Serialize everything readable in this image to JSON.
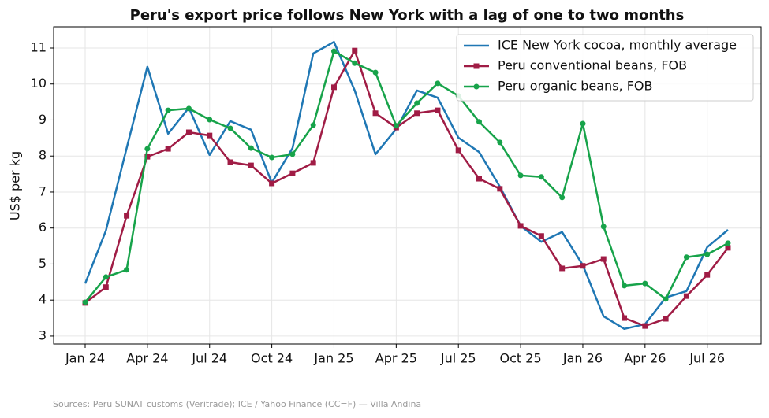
{
  "chart_data": {
    "type": "line",
    "title": "Peru's export price follows New York with a lag of one to two months",
    "y_label": "US$ per kg",
    "source": "Sources: Peru SUNAT customs (Veritrade); ICE / Yahoo Finance (CC=F) — Villa Andina",
    "categories": [
      "Jan 24",
      null,
      null,
      "Apr 24",
      null,
      null,
      "Jul 24",
      null,
      null,
      "Oct 24",
      null,
      null,
      "Jan 25",
      null,
      null,
      "Apr 25",
      null,
      null,
      "Jul 25",
      null,
      null,
      "Oct 25",
      null,
      null,
      "Jan 26",
      null,
      null,
      "Apr 26",
      null,
      null,
      "Jul 26",
      null
    ],
    "series": [
      {
        "name": "ICE New York cocoa, monthly average",
        "color": "#1f77b4",
        "marker": "none",
        "values": [
          4.46,
          5.93,
          8.22,
          10.48,
          8.62,
          9.34,
          8.03,
          8.97,
          8.73,
          7.26,
          8.22,
          10.85,
          11.17,
          9.82,
          8.05,
          8.75,
          9.82,
          9.62,
          8.51,
          8.11,
          7.15,
          6.06,
          5.62,
          5.89,
          4.97,
          3.55,
          3.2,
          3.33,
          4.07,
          4.25,
          5.47,
          5.95
        ]
      },
      {
        "name": "Peru conventional beans, FOB",
        "color": "#a01c45",
        "marker": "square",
        "values": [
          3.92,
          4.36,
          6.34,
          7.98,
          8.2,
          8.66,
          8.57,
          7.83,
          7.74,
          7.24,
          7.52,
          7.81,
          9.91,
          10.93,
          9.19,
          8.79,
          9.19,
          9.27,
          8.16,
          7.37,
          7.09,
          6.06,
          5.78,
          4.88,
          4.95,
          5.14,
          3.5,
          3.28,
          3.48,
          4.11,
          4.7,
          5.45
        ]
      },
      {
        "name": "Peru organic beans, FOB",
        "color": "#17a34a",
        "marker": "circle",
        "values": [
          3.94,
          4.64,
          4.84,
          8.2,
          9.27,
          9.32,
          9.01,
          8.77,
          8.22,
          7.96,
          8.05,
          8.86,
          10.91,
          10.58,
          10.32,
          8.84,
          9.47,
          10.02,
          9.67,
          8.95,
          8.38,
          7.46,
          7.42,
          6.85,
          8.9,
          6.04,
          4.4,
          4.46,
          4.03,
          5.19,
          5.27,
          5.58
        ]
      }
    ],
    "ylim": [
      2.78,
      11.59
    ],
    "yticks": [
      3,
      4,
      5,
      6,
      7,
      8,
      9,
      10,
      11
    ],
    "grid": true,
    "legend": "upper right"
  }
}
